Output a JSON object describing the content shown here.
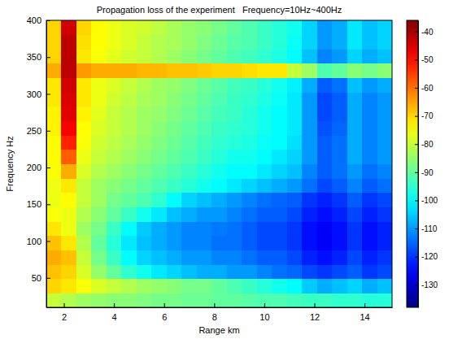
{
  "chart_data": {
    "type": "heatmap",
    "title": "Propagation loss of the experiment   Frequency=10Hz~400Hz",
    "x_label": "Range km",
    "y_label": "Frequency Hz",
    "xlim": [
      1.3,
      15.1
    ],
    "ylim": [
      10,
      400
    ],
    "xticks": [
      2,
      4,
      6,
      8,
      10,
      12,
      14
    ],
    "yticks": [
      50,
      100,
      150,
      200,
      250,
      300,
      350,
      400
    ],
    "x_edges": [
      1.3,
      1.9,
      2.5,
      3.1,
      3.7,
      4.3,
      4.9,
      5.5,
      6.1,
      6.7,
      7.3,
      7.9,
      8.5,
      9.1,
      9.7,
      10.3,
      10.9,
      11.5,
      12.1,
      12.7,
      13.3,
      13.9,
      14.5,
      15.1
    ],
    "y_edges": [
      10,
      29.5,
      49,
      68.5,
      88,
      107.5,
      127,
      146.5,
      166,
      185.5,
      205,
      224.5,
      244,
      263.5,
      283,
      302.5,
      322,
      341.5,
      361,
      380.5,
      400
    ],
    "cells": [
      [
        -80,
        -82,
        -84,
        -85,
        -86,
        -86,
        -87,
        -88,
        -88,
        -89,
        -89,
        -90,
        -90,
        -91,
        -92,
        -92,
        -93,
        -94,
        -94,
        -95,
        -95,
        -96,
        -96
      ],
      [
        -70,
        -72,
        -75,
        -78,
        -80,
        -82,
        -84,
        -85,
        -86,
        -88,
        -88,
        -90,
        -92,
        -94,
        -96,
        -98,
        -100,
        -105,
        -108,
        -106,
        -104,
        -108,
        -106
      ],
      [
        -68,
        -70,
        -78,
        -85,
        -90,
        -95,
        -98,
        -102,
        -104,
        -106,
        -108,
        -108,
        -110,
        -110,
        -112,
        -114,
        -115,
        -118,
        -120,
        -118,
        -116,
        -120,
        -118
      ],
      [
        -66,
        -68,
        -80,
        -88,
        -94,
        -100,
        -104,
        -106,
        -108,
        -110,
        -110,
        -112,
        -112,
        -114,
        -116,
        -116,
        -118,
        -122,
        -124,
        -122,
        -118,
        -122,
        -120
      ],
      [
        -68,
        -72,
        -82,
        -90,
        -96,
        -102,
        -106,
        -108,
        -110,
        -112,
        -112,
        -114,
        -114,
        -116,
        -118,
        -118,
        -120,
        -124,
        -126,
        -124,
        -120,
        -124,
        -122
      ],
      [
        -72,
        -76,
        -84,
        -88,
        -94,
        -100,
        -105,
        -108,
        -110,
        -112,
        -112,
        -113,
        -114,
        -116,
        -118,
        -118,
        -120,
        -124,
        -126,
        -124,
        -120,
        -124,
        -122
      ],
      [
        -75,
        -76,
        -82,
        -86,
        -90,
        -94,
        -98,
        -102,
        -106,
        -108,
        -110,
        -110,
        -112,
        -114,
        -116,
        -116,
        -118,
        -122,
        -124,
        -122,
        -118,
        -122,
        -120
      ],
      [
        -76,
        -74,
        -80,
        -84,
        -88,
        -90,
        -92,
        -95,
        -100,
        -104,
        -106,
        -108,
        -110,
        -112,
        -114,
        -115,
        -116,
        -120,
        -122,
        -120,
        -116,
        -120,
        -118
      ],
      [
        -76,
        -72,
        -80,
        -84,
        -86,
        -88,
        -90,
        -92,
        -94,
        -96,
        -98,
        -100,
        -102,
        -104,
        -106,
        -108,
        -110,
        -114,
        -118,
        -116,
        -112,
        -116,
        -114
      ],
      [
        -75,
        -66,
        -78,
        -82,
        -84,
        -86,
        -88,
        -90,
        -92,
        -94,
        -96,
        -98,
        -100,
        -100,
        -102,
        -104,
        -106,
        -112,
        -116,
        -114,
        -110,
        -114,
        -112
      ],
      [
        -74,
        -58,
        -76,
        -80,
        -82,
        -84,
        -86,
        -88,
        -90,
        -92,
        -94,
        -96,
        -98,
        -98,
        -100,
        -102,
        -104,
        -110,
        -116,
        -114,
        -108,
        -112,
        -110
      ],
      [
        -74,
        -52,
        -75,
        -79,
        -81,
        -83,
        -85,
        -87,
        -89,
        -91,
        -93,
        -95,
        -96,
        -97,
        -99,
        -100,
        -103,
        -110,
        -116,
        -114,
        -108,
        -112,
        -110
      ],
      [
        -73,
        -48,
        -74,
        -78,
        -80,
        -82,
        -84,
        -86,
        -88,
        -90,
        -92,
        -94,
        -95,
        -96,
        -98,
        -100,
        -102,
        -110,
        -117,
        -115,
        -108,
        -112,
        -110
      ],
      [
        -73,
        -46,
        -73,
        -77,
        -80,
        -82,
        -84,
        -85,
        -87,
        -89,
        -91,
        -93,
        -94,
        -96,
        -98,
        -100,
        -102,
        -110,
        -118,
        -116,
        -108,
        -112,
        -110
      ],
      [
        -72,
        -45,
        -72,
        -76,
        -79,
        -81,
        -83,
        -84,
        -86,
        -88,
        -90,
        -92,
        -94,
        -95,
        -97,
        -99,
        -102,
        -110,
        -118,
        -116,
        -108,
        -112,
        -110
      ],
      [
        -72,
        -44,
        -72,
        -76,
        -78,
        -80,
        -82,
        -84,
        -85,
        -87,
        -89,
        -91,
        -93,
        -94,
        -96,
        -98,
        -101,
        -108,
        -116,
        -114,
        -106,
        -110,
        -108
      ],
      [
        -66,
        -42,
        -64,
        -66,
        -66,
        -66,
        -67,
        -67,
        -68,
        -68,
        -69,
        -70,
        -70,
        -71,
        -72,
        -72,
        -80,
        -84,
        -92,
        -90,
        -86,
        -88,
        -86
      ],
      [
        -70,
        -42,
        -72,
        -75,
        -77,
        -79,
        -80,
        -82,
        -84,
        -86,
        -88,
        -90,
        -92,
        -93,
        -95,
        -97,
        -100,
        -106,
        -112,
        -110,
        -104,
        -108,
        -106
      ],
      [
        -70,
        -42,
        -71,
        -74,
        -76,
        -78,
        -80,
        -82,
        -83,
        -85,
        -87,
        -89,
        -91,
        -92,
        -94,
        -96,
        -99,
        -104,
        -110,
        -108,
        -102,
        -106,
        -104
      ],
      [
        -70,
        -44,
        -70,
        -74,
        -76,
        -78,
        -79,
        -81,
        -83,
        -85,
        -86,
        -88,
        -90,
        -92,
        -94,
        -96,
        -98,
        -104,
        -110,
        -108,
        -102,
        -106,
        -104
      ]
    ],
    "colorbar_range": [
      -138,
      -36
    ],
    "colorbar_ticks": [
      -40,
      -50,
      -60,
      -70,
      -80,
      -90,
      -100,
      -110,
      -120,
      -130
    ]
  }
}
